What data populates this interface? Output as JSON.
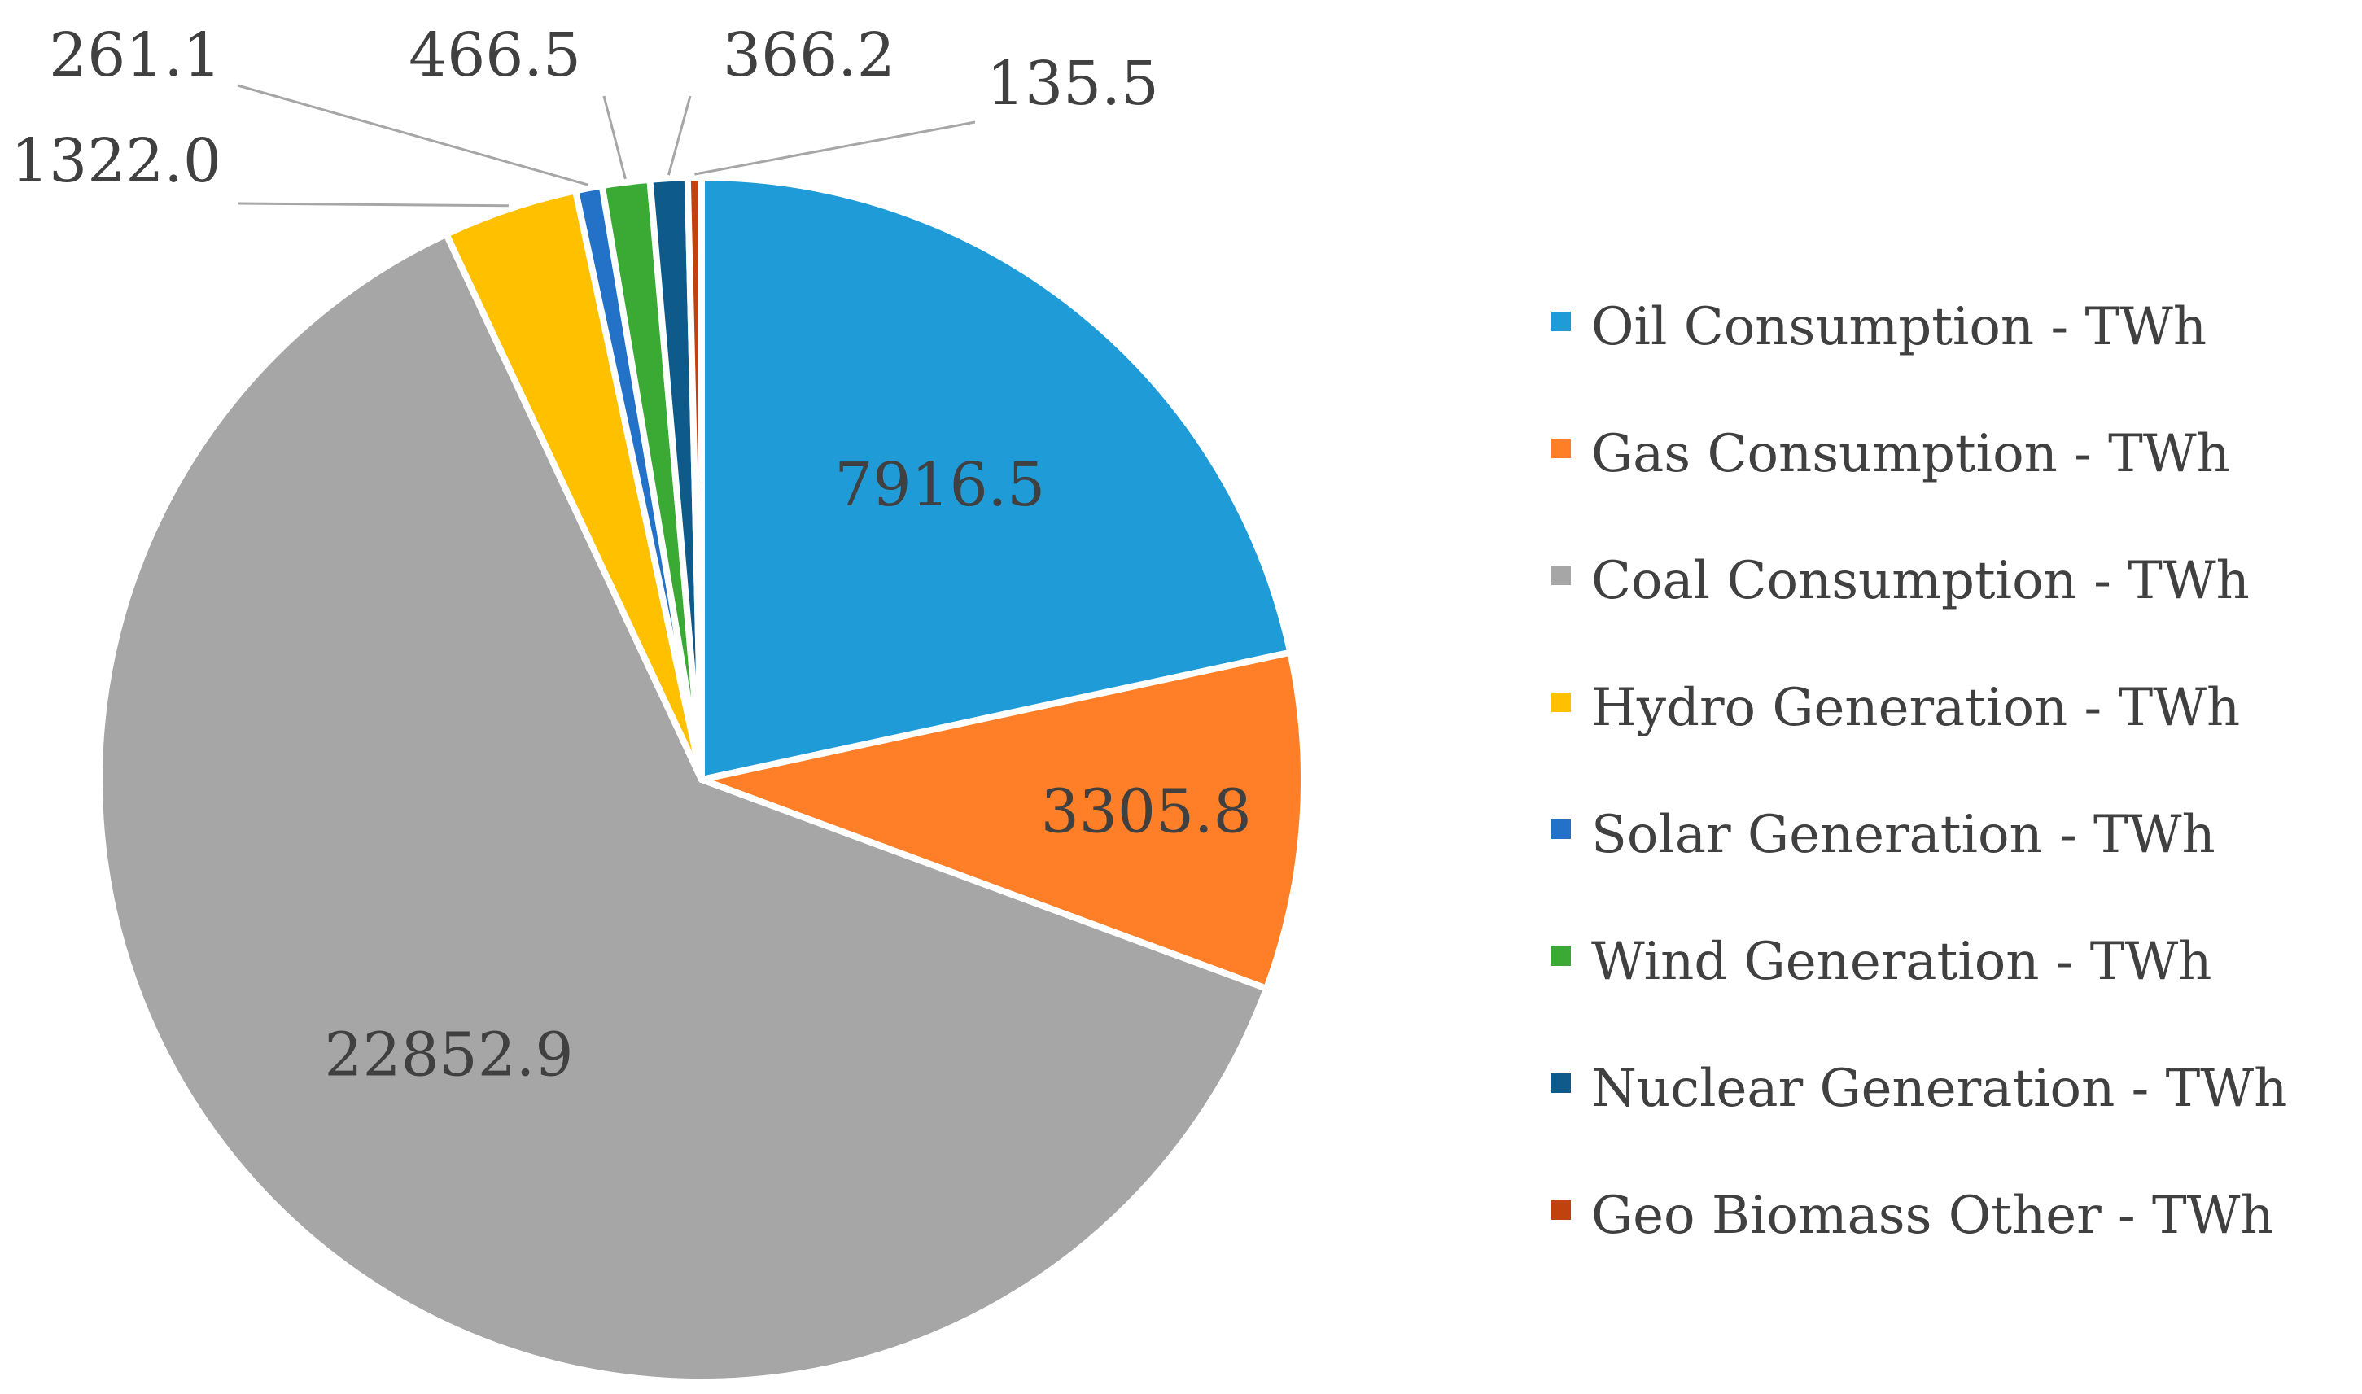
{
  "chart_data": {
    "type": "pie",
    "title": "",
    "legend_position": "right",
    "series": [
      {
        "name": "Oil Consumption - TWh",
        "value": 7916.5,
        "label": "7916.5",
        "color": "#1f9bd7"
      },
      {
        "name": "Gas Consumption - TWh",
        "value": 3305.8,
        "label": "3305.8",
        "color": "#fe7f27"
      },
      {
        "name": "Coal Consumption - TWh",
        "value": 22852.9,
        "label": "22852.9",
        "color": "#a6a6a6"
      },
      {
        "name": "Hydro Generation - TWh",
        "value": 1322.0,
        "label": "1322.0",
        "color": "#ffc000"
      },
      {
        "name": "Solar Generation - TWh",
        "value": 261.1,
        "label": "261.1",
        "color": "#2472c8"
      },
      {
        "name": "Wind Generation - TWh",
        "value": 466.5,
        "label": "466.5",
        "color": "#3aaa35"
      },
      {
        "name": "Nuclear Generation - TWh",
        "value": 366.2,
        "label": "366.2",
        "color": "#0e5a8a"
      },
      {
        "name": "Geo Biomass Other - TWh",
        "value": 135.5,
        "label": "135.5",
        "color": "#c0430f"
      }
    ]
  }
}
